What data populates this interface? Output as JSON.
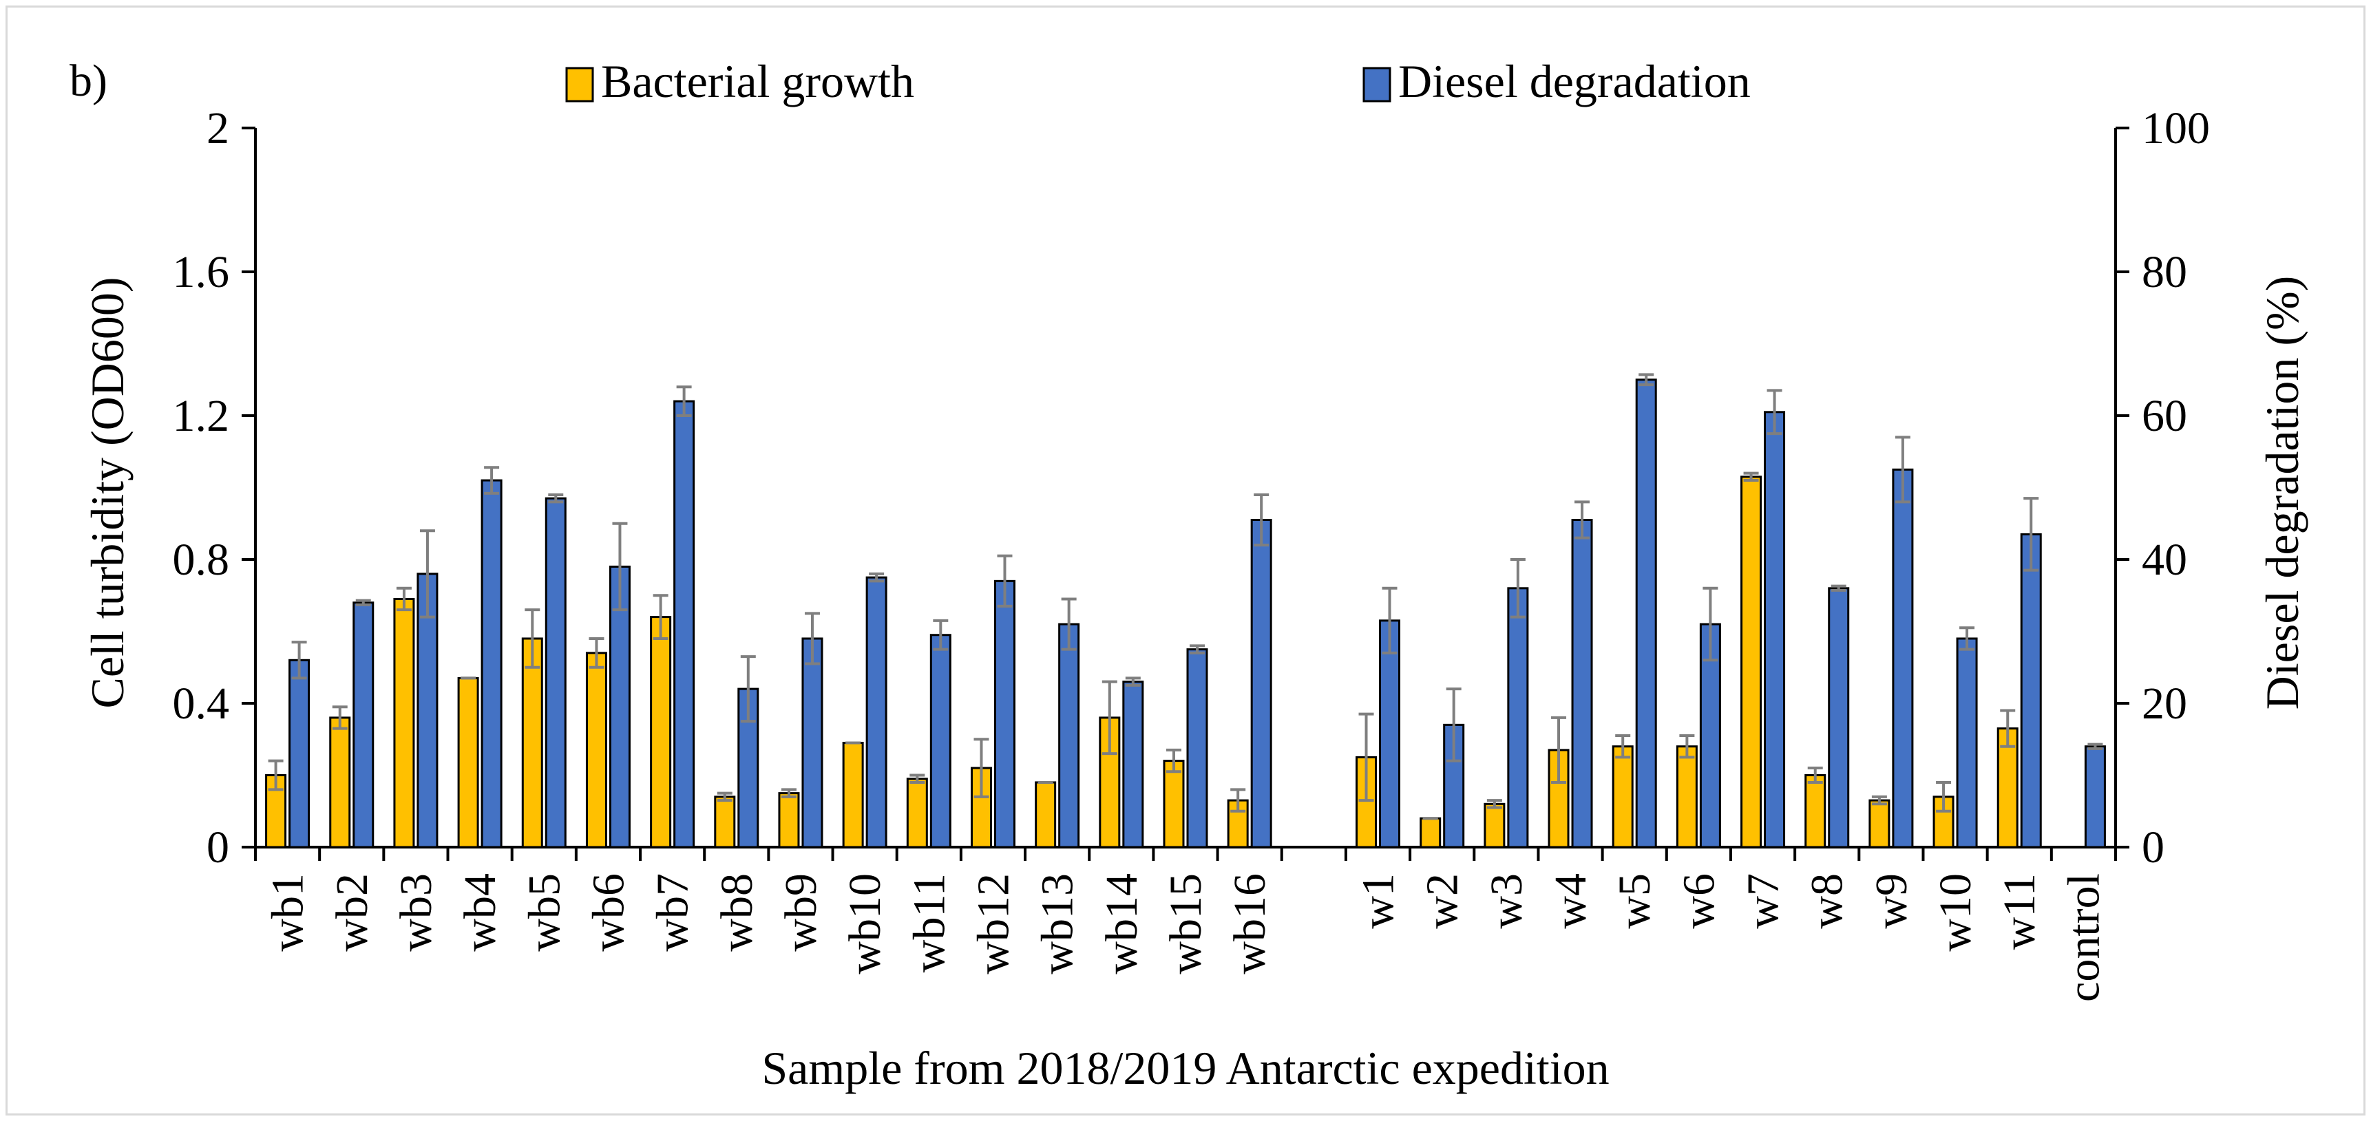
{
  "chart_data": {
    "type": "bar",
    "panel_label": "b)",
    "xlabel": "Sample from 2018/2019 Antarctic expedition",
    "ylabel_left": "Cell turbidity (OD600)",
    "ylabel_right": "Diesel degradation (%)",
    "ylim_left": [
      0,
      2
    ],
    "ylim_right": [
      0,
      100
    ],
    "yticks_left": [
      "0",
      "0.4",
      "0.8",
      "1.2",
      "1.6",
      "2"
    ],
    "yticks_right": [
      "0",
      "20",
      "40",
      "60",
      "80",
      "100"
    ],
    "categories": [
      "wb1",
      "wb2",
      "wb3",
      "wb4",
      "wb5",
      "wb6",
      "wb7",
      "wb8",
      "wb9",
      "wb10",
      "wb11",
      "wb12",
      "wb13",
      "wb14",
      "wb15",
      "wb16",
      "",
      "w1",
      "w2",
      "w3",
      "w4",
      "w5",
      "w6",
      "w7",
      "w8",
      "w9",
      "w10",
      "w11",
      "control"
    ],
    "series": [
      {
        "name": "Bacterial growth",
        "axis": "left",
        "color": "#ffc000",
        "values": [
          0.2,
          0.36,
          0.69,
          0.47,
          0.58,
          0.54,
          0.64,
          0.14,
          0.15,
          0.29,
          0.19,
          0.22,
          0.18,
          0.36,
          0.24,
          0.13,
          null,
          0.25,
          0.08,
          0.12,
          0.27,
          0.28,
          0.28,
          1.03,
          0.2,
          0.13,
          0.14,
          0.33,
          null
        ],
        "errors": [
          0.04,
          0.03,
          0.03,
          0.0,
          0.08,
          0.04,
          0.06,
          0.01,
          0.01,
          0.0,
          0.01,
          0.08,
          0.0,
          0.1,
          0.03,
          0.03,
          null,
          0.12,
          0.0,
          0.01,
          0.09,
          0.03,
          0.03,
          0.01,
          0.02,
          0.01,
          0.04,
          0.05,
          null
        ]
      },
      {
        "name": "Diesel degradation",
        "axis": "right",
        "color": "#4472c4",
        "values": [
          26,
          34,
          38,
          51,
          48.5,
          39,
          62,
          22,
          29,
          37.5,
          29.5,
          37,
          31,
          23,
          27.5,
          45.5,
          null,
          31.5,
          17,
          36,
          45.5,
          65,
          31,
          60.5,
          36,
          52.5,
          29,
          43.5,
          14
        ],
        "errors": [
          2.5,
          0.3,
          6,
          1.8,
          0.5,
          6,
          2,
          4.5,
          3.5,
          0.5,
          2,
          3.5,
          3.5,
          0.5,
          0.5,
          3.5,
          null,
          4.5,
          5,
          4,
          2.5,
          0.7,
          5,
          3,
          0.3,
          4.5,
          1.5,
          5,
          0.3
        ]
      }
    ],
    "legend": {
      "placement": "top-center",
      "items": [
        "Bacterial growth",
        "Diesel degradation"
      ]
    },
    "grid": false
  }
}
